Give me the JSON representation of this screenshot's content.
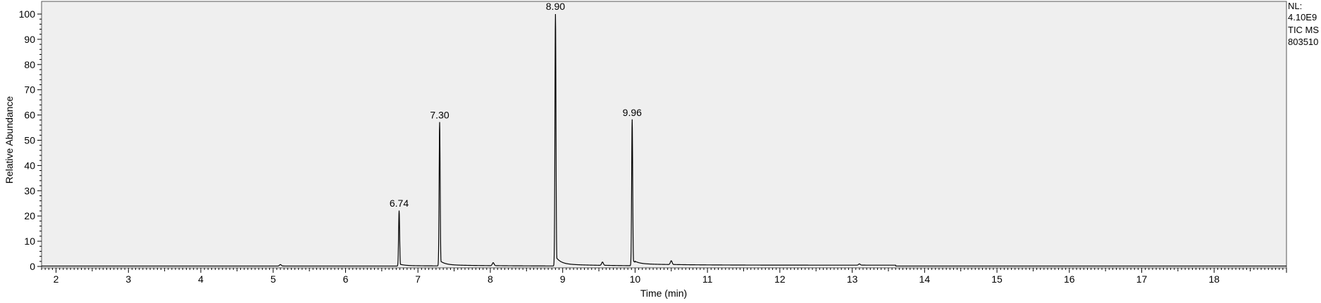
{
  "chart_data": {
    "type": "line",
    "xlabel": "Time (min)",
    "ylabel": "Relative Abundance",
    "xlim": [
      1.8,
      19.0
    ],
    "ylim": [
      0,
      100
    ],
    "x_ticks": [
      2,
      3,
      4,
      5,
      6,
      7,
      8,
      9,
      10,
      11,
      12,
      13,
      14,
      15,
      16,
      17,
      18
    ],
    "y_ticks": [
      0,
      10,
      20,
      30,
      40,
      50,
      60,
      70,
      80,
      90,
      100
    ],
    "grid": false,
    "plot_background": "#efefef",
    "line_color": "#000000",
    "peaks": [
      {
        "label": "6.74",
        "x": 6.74,
        "y": 22
      },
      {
        "label": "7.30",
        "x": 7.3,
        "y": 57
      },
      {
        "label": "8.90",
        "x": 8.9,
        "y": 100
      },
      {
        "label": "9.96",
        "x": 9.96,
        "y": 58
      }
    ],
    "minor_peaks": [
      {
        "x": 5.1,
        "y": 0.6
      },
      {
        "x": 8.04,
        "y": 1.2
      },
      {
        "x": 9.55,
        "y": 1.3
      },
      {
        "x": 10.5,
        "y": 1.5
      },
      {
        "x": 13.1,
        "y": 0.5
      }
    ],
    "info": {
      "nl_label": "NL:",
      "nl_value": "4.10E9",
      "scan_type": "TIC  MS",
      "file_id": "803510"
    }
  }
}
